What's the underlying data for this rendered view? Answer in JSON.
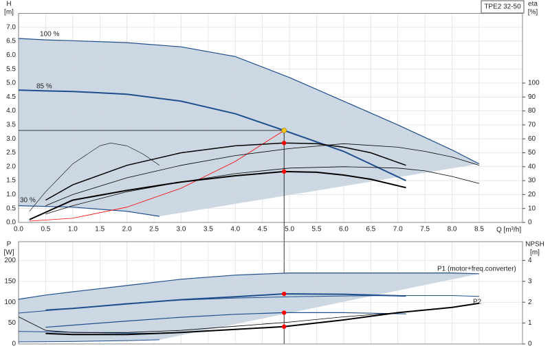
{
  "chart_data": [
    {
      "type": "line",
      "model": "TPE2 32-50",
      "y_label": "H",
      "y_unit": "[m]",
      "y2_label": "eta",
      "y2_unit": "[%]",
      "x_label": "Q [m³/h]",
      "xlim": [
        0,
        9.3
      ],
      "ylim": [
        0,
        7.5
      ],
      "y2lim": [
        0,
        150
      ],
      "grid": true,
      "show_xtick_labels": true,
      "area_between": [
        0,
        2
      ],
      "area_color": "#cbd7e3",
      "xticks": [
        {
          "value": 0,
          "label": "0.0"
        },
        {
          "value": 0.5,
          "label": "0.5"
        },
        {
          "value": 1,
          "label": "1.0"
        },
        {
          "value": 1.5,
          "label": "1.5"
        },
        {
          "value": 2,
          "label": "2.0"
        },
        {
          "value": 2.5,
          "label": "2.5"
        },
        {
          "value": 3,
          "label": "3.0"
        },
        {
          "value": 3.5,
          "label": "3.5"
        },
        {
          "value": 4,
          "label": "4.0"
        },
        {
          "value": 4.5,
          "label": "4.5"
        },
        {
          "value": 5,
          "label": "5.0"
        },
        {
          "value": 5.5,
          "label": "5.5"
        },
        {
          "value": 6,
          "label": "6.0"
        },
        {
          "value": 6.5,
          "label": "6.5"
        },
        {
          "value": 7,
          "label": "7.0"
        },
        {
          "value": 7.5,
          "label": "7.5"
        },
        {
          "value": 8,
          "label": "8.0"
        },
        {
          "value": 8.5,
          "label": "8.5"
        }
      ],
      "yticks": [
        {
          "value": 0,
          "label": "0.0"
        },
        {
          "value": 0.5,
          "label": "0.5"
        },
        {
          "value": 1,
          "label": "1.0"
        },
        {
          "value": 1.5,
          "label": "1.5"
        },
        {
          "value": 2,
          "label": "2.0"
        },
        {
          "value": 2.5,
          "label": "2.5"
        },
        {
          "value": 3,
          "label": "3.0"
        },
        {
          "value": 3.5,
          "label": "3.5"
        },
        {
          "value": 4,
          "label": "4.0"
        },
        {
          "value": 4.5,
          "label": "4.5"
        },
        {
          "value": 5,
          "label": "5.0"
        },
        {
          "value": 5.5,
          "label": "5.5"
        },
        {
          "value": 6,
          "label": "6.0"
        },
        {
          "value": 6.5,
          "label": "6.5"
        },
        {
          "value": 7,
          "label": "7.0"
        }
      ],
      "y2ticks": [
        0,
        10,
        20,
        30,
        40,
        50,
        60,
        70,
        80,
        90,
        100
      ],
      "series": [
        {
          "name": "100 %",
          "color": "#1f4e8c",
          "width": 1.2,
          "x": [
            0,
            0.5,
            1,
            2,
            3,
            4,
            5,
            6,
            7,
            8,
            8.5
          ],
          "values": [
            6.6,
            6.55,
            6.52,
            6.45,
            6.3,
            5.95,
            5.2,
            4.35,
            3.5,
            2.6,
            2.1
          ]
        },
        {
          "name": "85 %",
          "color": "#1f4e8c",
          "width": 2,
          "x": [
            0,
            0.5,
            1,
            2,
            3,
            4,
            4.9,
            6,
            7.15
          ],
          "values": [
            4.75,
            4.72,
            4.7,
            4.6,
            4.35,
            3.9,
            3.3,
            2.55,
            1.5
          ]
        },
        {
          "name": "30 %",
          "color": "#1f4e8c",
          "width": 1.2,
          "x": [
            0,
            1,
            2,
            2.6
          ],
          "values": [
            0.6,
            0.55,
            0.4,
            0.22
          ]
        },
        {
          "color": "#ff0000",
          "width": 0.8,
          "x": [
            0.2,
            1,
            2,
            3,
            4,
            4.9
          ],
          "values": [
            0.05,
            0.15,
            0.55,
            1.23,
            2.19,
            3.3
          ]
        },
        {
          "color": "#000000",
          "width": 1.5,
          "axis": "y2",
          "x": [
            0.5,
            1,
            1.5,
            2,
            3,
            4,
            4.9,
            5.5,
            6,
            6.5,
            7.15
          ],
          "values": [
            16,
            27,
            34,
            41,
            50,
            55,
            57,
            56.5,
            54,
            50,
            41
          ]
        },
        {
          "color": "#000000",
          "width": 0.8,
          "axis": "y2",
          "x": [
            0.5,
            1,
            2,
            3,
            4,
            5,
            6,
            7,
            7.5,
            8,
            8.5
          ],
          "values": [
            12,
            20,
            32,
            41,
            48,
            53,
            56.5,
            54,
            51,
            47,
            41
          ]
        },
        {
          "color": "#000000",
          "width": 2,
          "axis": "y2",
          "x": [
            0.2,
            1,
            2,
            3,
            4,
            4.9,
            5.5,
            6,
            6.5,
            7.15
          ],
          "values": [
            2,
            16,
            23,
            29,
            33.5,
            36.5,
            36,
            34,
            31,
            25
          ]
        },
        {
          "color": "#000000",
          "width": 0.8,
          "axis": "y2",
          "x": [
            0.5,
            1,
            2,
            3,
            4,
            5,
            6,
            7,
            7.5,
            8,
            8.5
          ],
          "values": [
            6,
            12,
            22,
            29,
            35,
            39,
            40,
            39,
            37,
            33,
            28
          ]
        },
        {
          "color": "#000000",
          "width": 0.6,
          "axis": "y2",
          "x": [
            0.2,
            0.5,
            1,
            1.5,
            1.7,
            2,
            2.3,
            2.6
          ],
          "values": [
            8,
            22,
            42,
            55,
            57,
            55,
            49,
            41
          ]
        }
      ],
      "duty": {
        "x": 4.9,
        "y": 3.3,
        "color": "#f5c518"
      },
      "points": [
        {
          "x": 4.9,
          "y": 57,
          "axis": "y2",
          "color": "#ff0000"
        },
        {
          "x": 4.9,
          "y": 36.5,
          "axis": "y2",
          "color": "#ff0000"
        }
      ]
    },
    {
      "type": "line",
      "y_label": "P",
      "y_unit": "[W]",
      "y2_label": "NPSH",
      "y2_unit": "[m]",
      "xlim": [
        0,
        9.3
      ],
      "ylim": [
        0,
        245
      ],
      "y2lim": [
        0,
        4.9
      ],
      "grid": true,
      "show_xtick_labels": false,
      "area_between": [
        0,
        5
      ],
      "area_color": "#cbd7e3",
      "xticks": [
        0,
        0.5,
        1,
        1.5,
        2,
        2.5,
        3,
        3.5,
        4,
        4.5,
        5,
        5.5,
        6,
        6.5,
        7,
        7.5,
        8,
        8.5
      ],
      "yticks": [
        0,
        50,
        100,
        150,
        200
      ],
      "y2ticks": [
        0,
        1,
        2,
        3,
        4
      ],
      "series": [
        {
          "name": "P1 (motor+freq.converter)",
          "color": "#1f4e8c",
          "width": 1.2,
          "x": [
            0,
            0.5,
            1,
            2,
            3,
            4,
            5,
            6,
            7,
            8,
            8.5
          ],
          "values": [
            107,
            117,
            125,
            140,
            155,
            165,
            170,
            170,
            170,
            170,
            168
          ]
        },
        {
          "color": "#1f4e8c",
          "width": 2,
          "x": [
            0.5,
            1,
            2,
            3,
            4,
            4.9,
            6,
            7.15
          ],
          "values": [
            81,
            85,
            96,
            106,
            113,
            120,
            119,
            115
          ]
        },
        {
          "name": "P2",
          "color": "#1f4e8c",
          "width": 1,
          "x": [
            0,
            1,
            2,
            3,
            4,
            5,
            6,
            7,
            8,
            8.5
          ],
          "values": [
            74,
            85,
            97,
            105,
            110,
            113,
            115,
            116,
            116,
            114
          ]
        },
        {
          "color": "#1f4e8c",
          "width": 1.2,
          "x": [
            0.5,
            1,
            2,
            3,
            4,
            4.9,
            6,
            7.15
          ],
          "values": [
            40,
            45,
            55,
            64,
            71,
            75,
            75,
            72
          ]
        },
        {
          "color": "#1f4e8c",
          "width": 1,
          "x": [
            0,
            1,
            2,
            2.6
          ],
          "values": [
            30,
            28,
            26,
            25
          ]
        },
        {
          "color": "#1f4e8c",
          "width": 1,
          "x": [
            0,
            1,
            2,
            2.6
          ],
          "values": [
            5,
            6,
            8,
            10
          ]
        },
        {
          "color": "#000000",
          "width": 2,
          "axis": "y2",
          "x": [
            0.5,
            1,
            2,
            3,
            4,
            4.9,
            6,
            7,
            8,
            8.5
          ],
          "values": [
            0.5,
            0.45,
            0.45,
            0.55,
            0.7,
            0.83,
            1.15,
            1.5,
            1.75,
            1.95
          ]
        },
        {
          "color": "#000000",
          "width": 0.8,
          "axis": "y2",
          "x": [
            0,
            0.5,
            1,
            2,
            3,
            4,
            5,
            6,
            7,
            8,
            8.5
          ],
          "values": [
            1.3,
            0.65,
            0.55,
            0.55,
            0.65,
            0.85,
            1.05,
            1.3,
            1.5,
            1.75,
            1.95
          ]
        }
      ],
      "points": [
        {
          "x": 4.9,
          "y": 120,
          "color": "#ff0000"
        },
        {
          "x": 4.9,
          "y": 75,
          "color": "#ff0000"
        },
        {
          "x": 4.9,
          "y": 0.83,
          "axis": "y2",
          "color": "#ff0000"
        }
      ]
    }
  ]
}
